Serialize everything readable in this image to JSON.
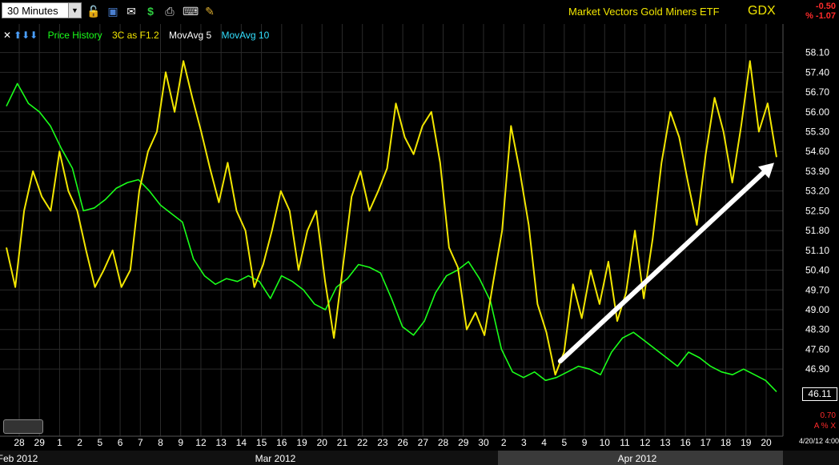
{
  "toolbar": {
    "timeframe": "30 Minutes",
    "icons": [
      "lock-icon",
      "save-icon",
      "email-icon",
      "dollar-icon",
      "print-icon",
      "keyboard-icon",
      "pencil-icon"
    ]
  },
  "header": {
    "title": "Market Vectors Gold Miners ETF",
    "ticker": "GDX",
    "change": "-0.50",
    "change_pct": "% -1.07"
  },
  "legend": {
    "items": [
      {
        "label": "Price History",
        "color": "#1aff1a"
      },
      {
        "label": "3C as F1.2",
        "color": "#f2e600"
      },
      {
        "label": "MovAvg 5",
        "color": "#ffffff"
      },
      {
        "label": "MovAvg 10",
        "color": "#33e0ff"
      }
    ]
  },
  "footer": {
    "corner_value": "0.70",
    "corner_axis": "A % X",
    "date_stamp": "4/20/12 4:00",
    "current_price": "46.11"
  },
  "chart_data": {
    "type": "line",
    "ylim": [
      45.8,
      58.4
    ],
    "y_ticks": [
      58.1,
      57.4,
      56.7,
      56.0,
      55.3,
      54.6,
      53.9,
      53.2,
      52.5,
      51.8,
      51.1,
      50.4,
      49.7,
      49.0,
      48.3,
      47.6,
      46.9
    ],
    "x_ticks": [
      "28",
      "29",
      "1",
      "2",
      "5",
      "6",
      "7",
      "8",
      "9",
      "12",
      "13",
      "14",
      "15",
      "16",
      "19",
      "20",
      "21",
      "22",
      "23",
      "26",
      "27",
      "28",
      "29",
      "30",
      "2",
      "3",
      "4",
      "5",
      "9",
      "10",
      "11",
      "12",
      "13",
      "16",
      "17",
      "18",
      "19",
      "20"
    ],
    "months": [
      "Feb 2012",
      "Mar 2012",
      "Apr 2012"
    ],
    "series": [
      {
        "name": "Price History",
        "color": "#1aff1a",
        "values": [
          56.2,
          57.0,
          56.3,
          56.0,
          55.5,
          54.7,
          54.0,
          52.5,
          52.6,
          52.9,
          53.3,
          53.5,
          53.6,
          53.2,
          52.7,
          52.4,
          52.1,
          50.8,
          50.2,
          49.9,
          50.1,
          50.0,
          50.2,
          50.0,
          49.4,
          50.2,
          50.0,
          49.7,
          49.2,
          49.0,
          49.8,
          50.1,
          50.6,
          50.5,
          50.3,
          49.4,
          48.4,
          48.1,
          48.6,
          49.6,
          50.2,
          50.4,
          50.7,
          50.1,
          49.3,
          47.6,
          46.8,
          46.6,
          46.8,
          46.5,
          46.6,
          46.8,
          47.0,
          46.9,
          46.7,
          47.5,
          48.0,
          48.2,
          47.9,
          47.6,
          47.3,
          47.0,
          47.5,
          47.3,
          47.0,
          46.8,
          46.7,
          46.9,
          46.7,
          46.5,
          46.1
        ]
      },
      {
        "name": "3C as F1.2",
        "color": "#f2e600",
        "values": [
          51.2,
          49.8,
          52.5,
          53.9,
          53.0,
          52.5,
          54.6,
          53.2,
          52.5,
          51.1,
          49.8,
          50.4,
          51.1,
          49.8,
          50.4,
          53.2,
          54.6,
          55.3,
          57.4,
          56.0,
          57.8,
          56.5,
          55.3,
          54.0,
          52.8,
          54.2,
          52.5,
          51.8,
          49.8,
          50.6,
          51.8,
          53.2,
          52.5,
          50.4,
          51.8,
          52.5,
          50.0,
          48.0,
          50.5,
          53.0,
          53.9,
          52.5,
          53.2,
          54.0,
          56.3,
          55.1,
          54.5,
          55.5,
          56.0,
          54.2,
          51.2,
          50.5,
          48.3,
          48.9,
          48.1,
          50.0,
          51.8,
          55.5,
          53.9,
          52.0,
          49.2,
          48.2,
          46.7,
          47.5,
          49.9,
          48.7,
          50.4,
          49.2,
          50.7,
          48.6,
          49.6,
          51.8,
          49.4,
          51.5,
          54.2,
          56.0,
          55.1,
          53.5,
          52.0,
          54.5,
          56.5,
          55.3,
          53.5,
          55.5,
          57.8,
          55.3,
          56.3,
          54.4
        ]
      }
    ],
    "annotation": {
      "type": "arrow",
      "from": {
        "x": "5",
        "y": 46.9
      },
      "to": {
        "x": "20",
        "y": 54.2
      }
    }
  }
}
